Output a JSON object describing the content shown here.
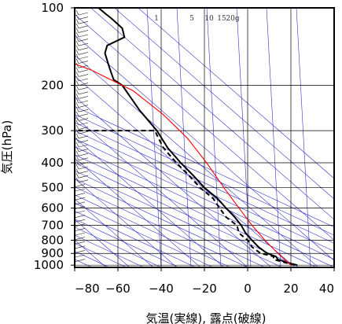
{
  "chart_data": {
    "type": "line",
    "title": "",
    "xlabel": "気温(実線), 露点(破線)",
    "ylabel": "気圧(hPa)",
    "xlim": [
      -80,
      40
    ],
    "ylim": [
      1020,
      100
    ],
    "y_scale": "log",
    "x_ticks": [
      "−80",
      "−60",
      "−40",
      "−20",
      "0",
      "20",
      "40"
    ],
    "x_tick_values": [
      -80,
      -60,
      -40,
      -20,
      0,
      20,
      40
    ],
    "y_ticks": [
      "100",
      "200",
      "300",
      "400",
      "500",
      "600",
      "700",
      "800",
      "900",
      "1000"
    ],
    "y_tick_values": [
      100,
      200,
      300,
      400,
      500,
      600,
      700,
      800,
      900,
      1000
    ],
    "mixing_ratio_labels": [
      "1",
      "5",
      "10",
      "15",
      "20g"
    ],
    "grid": true,
    "colors": {
      "temperature": "#000000",
      "dewpoint": "#000000",
      "parcel": "#ff0000",
      "adiabats": "#3333cc",
      "isotherms": "#3333cc",
      "grid": "#000000"
    },
    "series": [
      {
        "role": "temperature",
        "style": "solid",
        "x": [
          23,
          18,
          14,
          13,
          9,
          5,
          2,
          -1,
          -3,
          -6,
          -10,
          -14,
          -20,
          -25,
          -31,
          -37,
          -42,
          -50,
          -58,
          -62,
          -64,
          -66,
          -65,
          -57,
          -58,
          -63,
          -66,
          -69
        ],
        "y": [
          1000,
          975,
          950,
          925,
          900,
          850,
          800,
          750,
          700,
          650,
          600,
          550,
          500,
          450,
          400,
          350,
          300,
          250,
          200,
          190,
          170,
          150,
          140,
          130,
          120,
          110,
          105,
          100
        ]
      },
      {
        "role": "dewpoint",
        "style": "dashed",
        "x": [
          22,
          17,
          12,
          12,
          6,
          2,
          0,
          -4,
          -5,
          -10,
          -13,
          -16,
          -22,
          -27,
          -33,
          -39,
          -43,
          -80
        ],
        "y": [
          1000,
          975,
          950,
          925,
          900,
          850,
          800,
          750,
          700,
          650,
          600,
          550,
          500,
          450,
          400,
          350,
          300,
          300
        ]
      },
      {
        "role": "parcel",
        "style": "solid",
        "x": [
          20,
          14,
          8,
          2,
          -4,
          -11,
          -19,
          -28,
          -39,
          -53,
          -72,
          -80
        ],
        "y": [
          1000,
          900,
          800,
          700,
          600,
          500,
          400,
          320,
          260,
          210,
          175,
          165
        ]
      }
    ]
  }
}
